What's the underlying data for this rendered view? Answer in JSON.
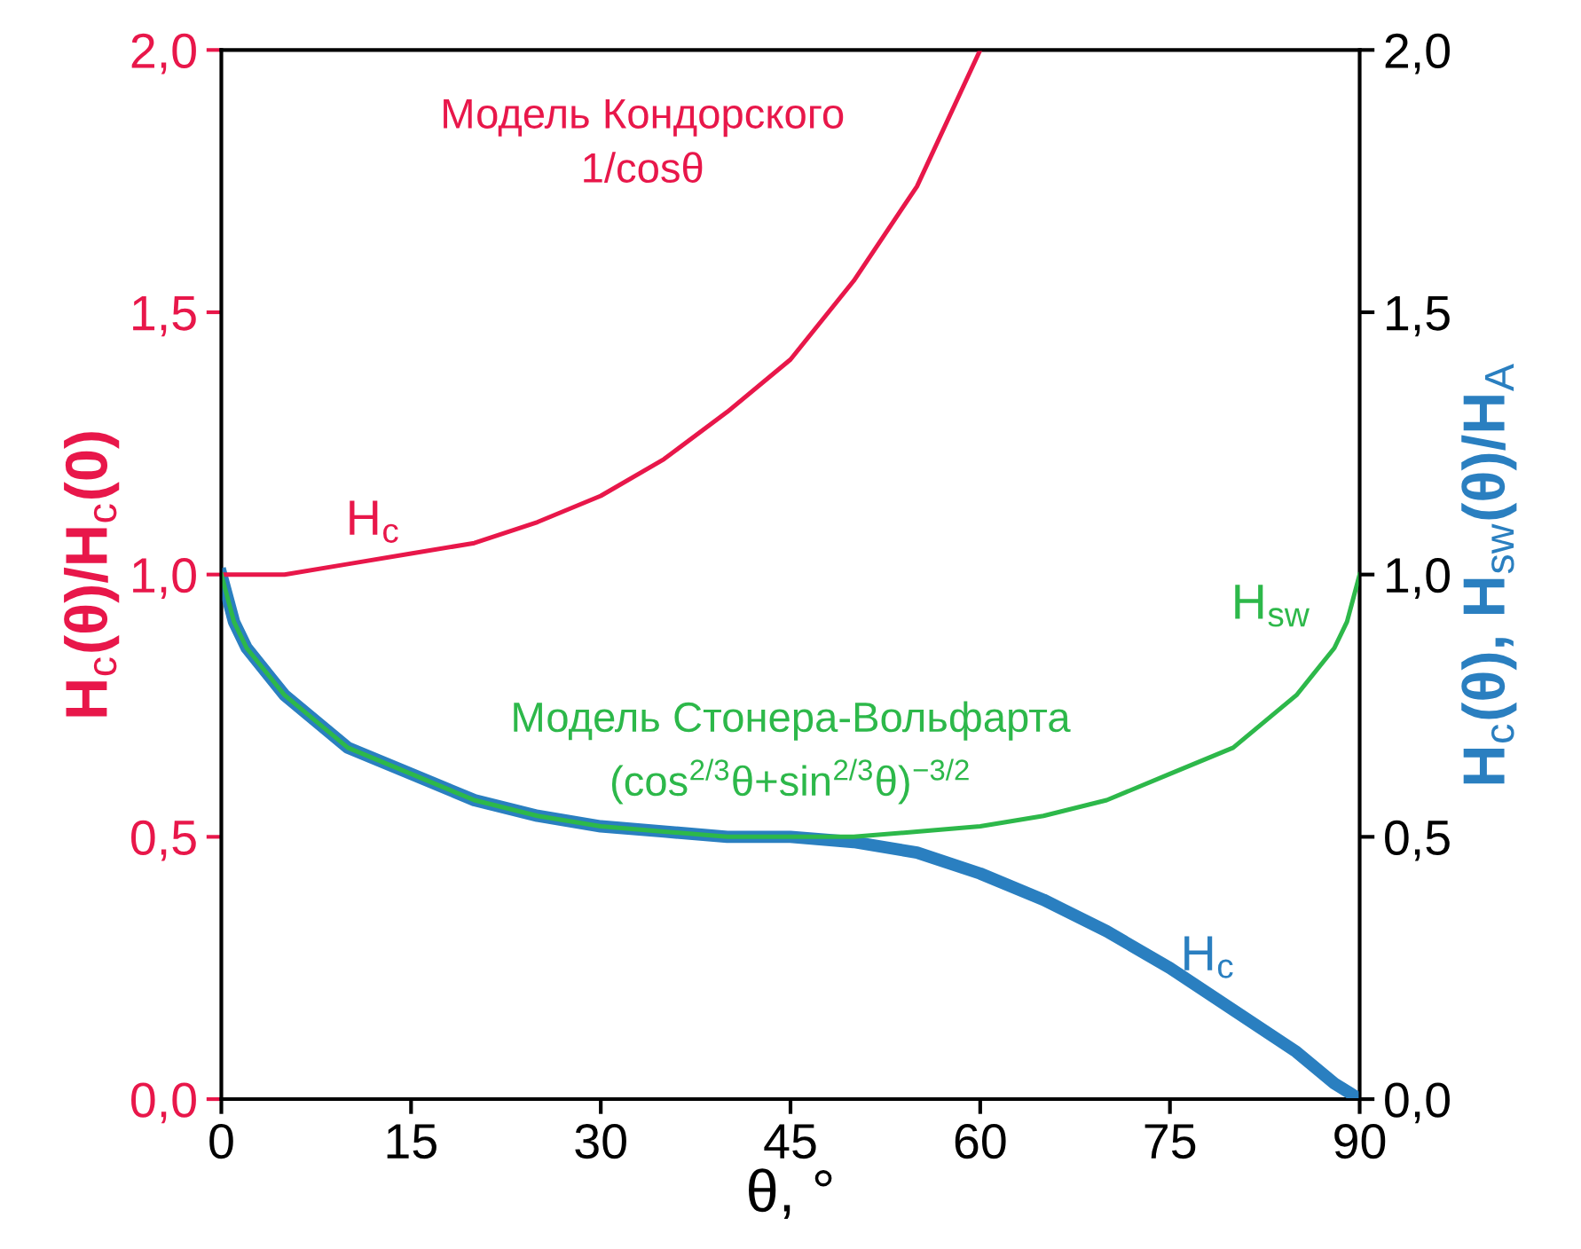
{
  "chart_data": {
    "type": "line",
    "xlabel": "θ, °",
    "ylabel": "H$_{c}$(θ)/H$_{c}$(0)",
    "y2label": "H$_{c}$(θ), H$_{sw}$(θ)/H$_{A}$",
    "series": [
      {
        "name": "H$_{c}$",
        "color": "#e8174a",
        "x": [
          0,
          5,
          10,
          15,
          20,
          25,
          30,
          35,
          40,
          45,
          50,
          55,
          60
        ],
        "values": [
          1.0,
          1.0,
          1.02,
          1.04,
          1.06,
          1.1,
          1.15,
          1.22,
          1.31,
          1.41,
          1.56,
          1.74,
          2.0
        ]
      },
      {
        "name": "H$_{sw}$",
        "color": "#2db84a",
        "x": [
          0,
          1,
          2,
          5,
          10,
          15,
          20,
          25,
          30,
          35,
          40,
          45,
          50,
          55,
          60,
          65,
          70,
          75,
          80,
          85,
          88,
          89,
          90
        ],
        "values": [
          1.0,
          0.91,
          0.86,
          0.77,
          0.67,
          0.62,
          0.57,
          0.54,
          0.52,
          0.51,
          0.5,
          0.5,
          0.5,
          0.51,
          0.52,
          0.54,
          0.57,
          0.62,
          0.67,
          0.77,
          0.86,
          0.91,
          1.0
        ]
      },
      {
        "name": "H$_{c}$",
        "color": "#2a7fc0",
        "x": [
          0,
          1,
          2,
          5,
          10,
          15,
          20,
          25,
          30,
          35,
          40,
          45,
          50,
          55,
          60,
          65,
          70,
          75,
          80,
          85,
          88,
          90
        ],
        "values": [
          1.0,
          0.91,
          0.86,
          0.77,
          0.67,
          0.62,
          0.57,
          0.54,
          0.52,
          0.51,
          0.5,
          0.5,
          0.49,
          0.47,
          0.43,
          0.38,
          0.32,
          0.25,
          0.17,
          0.09,
          0.03,
          0.0
        ]
      }
    ],
    "annotations": [
      "Модель Кондорского\n1/cosθ",
      "Модель Стонера-Вольфарта\n(cos$^{2/3}$θ+sin$^{2/3}$θ)$^{−3/2}$"
    ],
    "xlim": [
      0,
      90
    ],
    "xticks": [
      0,
      15,
      30,
      45,
      60,
      75,
      90
    ],
    "ylim": [
      0,
      2
    ],
    "yticks": [
      {
        "value": 0,
        "label": "0,0"
      },
      {
        "value": 0.5,
        "label": "0,5"
      },
      {
        "value": 1,
        "label": "1,0"
      },
      {
        "value": 1.5,
        "label": "1,5"
      },
      {
        "value": 2,
        "label": "2,0"
      }
    ],
    "y2lim": [
      0,
      2
    ],
    "y2ticks": [
      {
        "value": 0,
        "label": "0,0"
      },
      {
        "value": 0.5,
        "label": "0,5"
      },
      {
        "value": 1,
        "label": "1,0"
      },
      {
        "value": 1.5,
        "label": "1,5"
      },
      {
        "value": 2,
        "label": "2,0"
      }
    ],
    "grid": false,
    "legend": false
  }
}
